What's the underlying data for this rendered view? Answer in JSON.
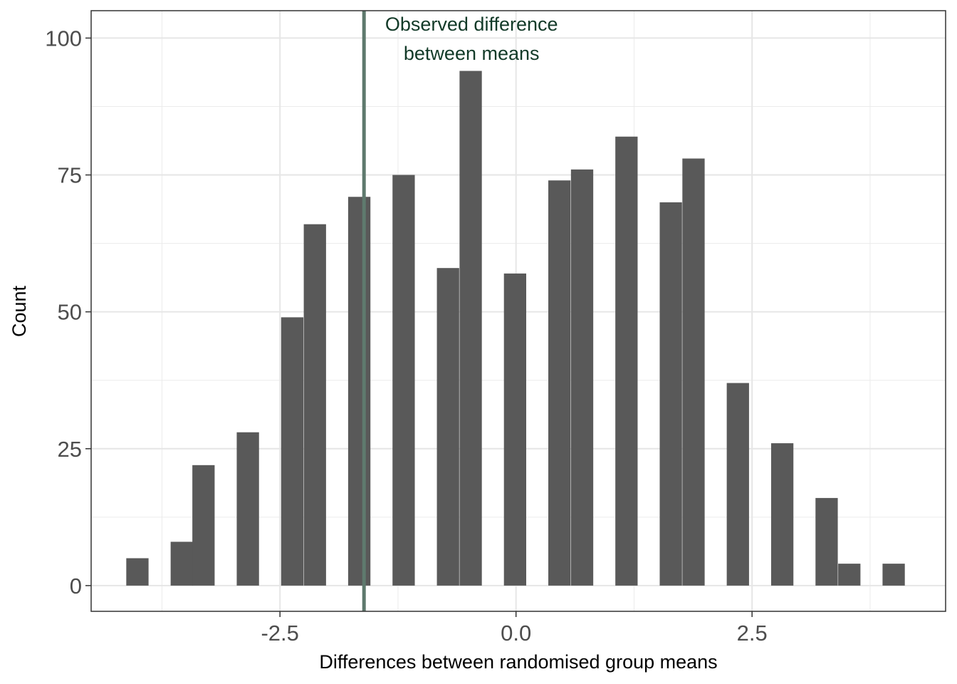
{
  "chart_data": {
    "type": "bar",
    "xlabel": "Differences between randomised group means",
    "ylabel": "Count",
    "xlim": [
      -4.5,
      4.55
    ],
    "ylim": [
      -4.7,
      105
    ],
    "x_ticks": [
      -2.5,
      0.0,
      2.5
    ],
    "x_tick_labels": [
      "-2.5",
      "0.0",
      "2.5"
    ],
    "y_ticks": [
      0,
      25,
      50,
      75,
      100
    ],
    "y_tick_labels": [
      "0",
      "25",
      "50",
      "75",
      "100"
    ],
    "bin_width": 0.236,
    "bins": [
      {
        "x": -4.01,
        "count": 5
      },
      {
        "x": -3.54,
        "count": 8
      },
      {
        "x": -3.31,
        "count": 22
      },
      {
        "x": -2.84,
        "count": 28
      },
      {
        "x": -2.37,
        "count": 49
      },
      {
        "x": -2.13,
        "count": 66
      },
      {
        "x": -1.66,
        "count": 71
      },
      {
        "x": -1.19,
        "count": 75
      },
      {
        "x": -0.72,
        "count": 58
      },
      {
        "x": -0.48,
        "count": 94
      },
      {
        "x": -0.01,
        "count": 57
      },
      {
        "x": 0.46,
        "count": 74
      },
      {
        "x": 0.7,
        "count": 76
      },
      {
        "x": 1.17,
        "count": 82
      },
      {
        "x": 1.64,
        "count": 70
      },
      {
        "x": 1.88,
        "count": 78
      },
      {
        "x": 2.35,
        "count": 37
      },
      {
        "x": 2.82,
        "count": 26
      },
      {
        "x": 3.29,
        "count": 16
      },
      {
        "x": 3.53,
        "count": 4
      },
      {
        "x": 4.0,
        "count": 4
      }
    ],
    "bar_color": "#595959",
    "observed_difference": {
      "x": -1.61,
      "label_line1": "Observed difference",
      "label_line2": "between means",
      "line_color": "#5f7a6e",
      "text_color": "#123a28"
    },
    "grid": true,
    "legend": "none"
  }
}
